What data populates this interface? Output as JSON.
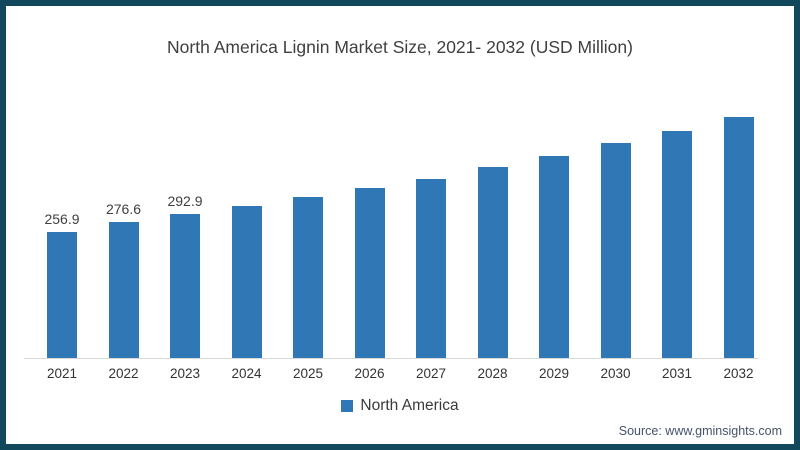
{
  "frame": {
    "border_color": "#11485c",
    "background_color": "#ffffff"
  },
  "chart_data": {
    "type": "bar",
    "title": "North America Lignin Market Size, 2021- 2032 (USD Million)",
    "categories": [
      "2021",
      "2022",
      "2023",
      "2024",
      "2025",
      "2026",
      "2027",
      "2028",
      "2029",
      "2030",
      "2031",
      "2032"
    ],
    "values": [
      256.9,
      276.6,
      292.9,
      309,
      327,
      345,
      363,
      388,
      410,
      438,
      462,
      490
    ],
    "value_labels": [
      "256.9",
      "276.6",
      "292.9",
      "",
      "",
      "",
      "",
      "",
      "",
      "",
      "",
      ""
    ],
    "series_name": "North America",
    "bar_color": "#2f77b5",
    "axis_line_color": "#d9d9d9",
    "gridlines": false,
    "legend_position": "bottom",
    "xlabel": "",
    "ylabel": "",
    "ylim": [
      0,
      510
    ]
  },
  "legend": {
    "items": [
      {
        "label": "North America",
        "swatch_color": "#2f77b5"
      }
    ]
  },
  "source_note": "Source: www.gminsights.com",
  "colors": {
    "title_text": "#3f3f3f",
    "tick_text": "#333333",
    "value_label_text": "#404040",
    "legend_text": "#3a3a3a",
    "source_text": "#44546a"
  }
}
